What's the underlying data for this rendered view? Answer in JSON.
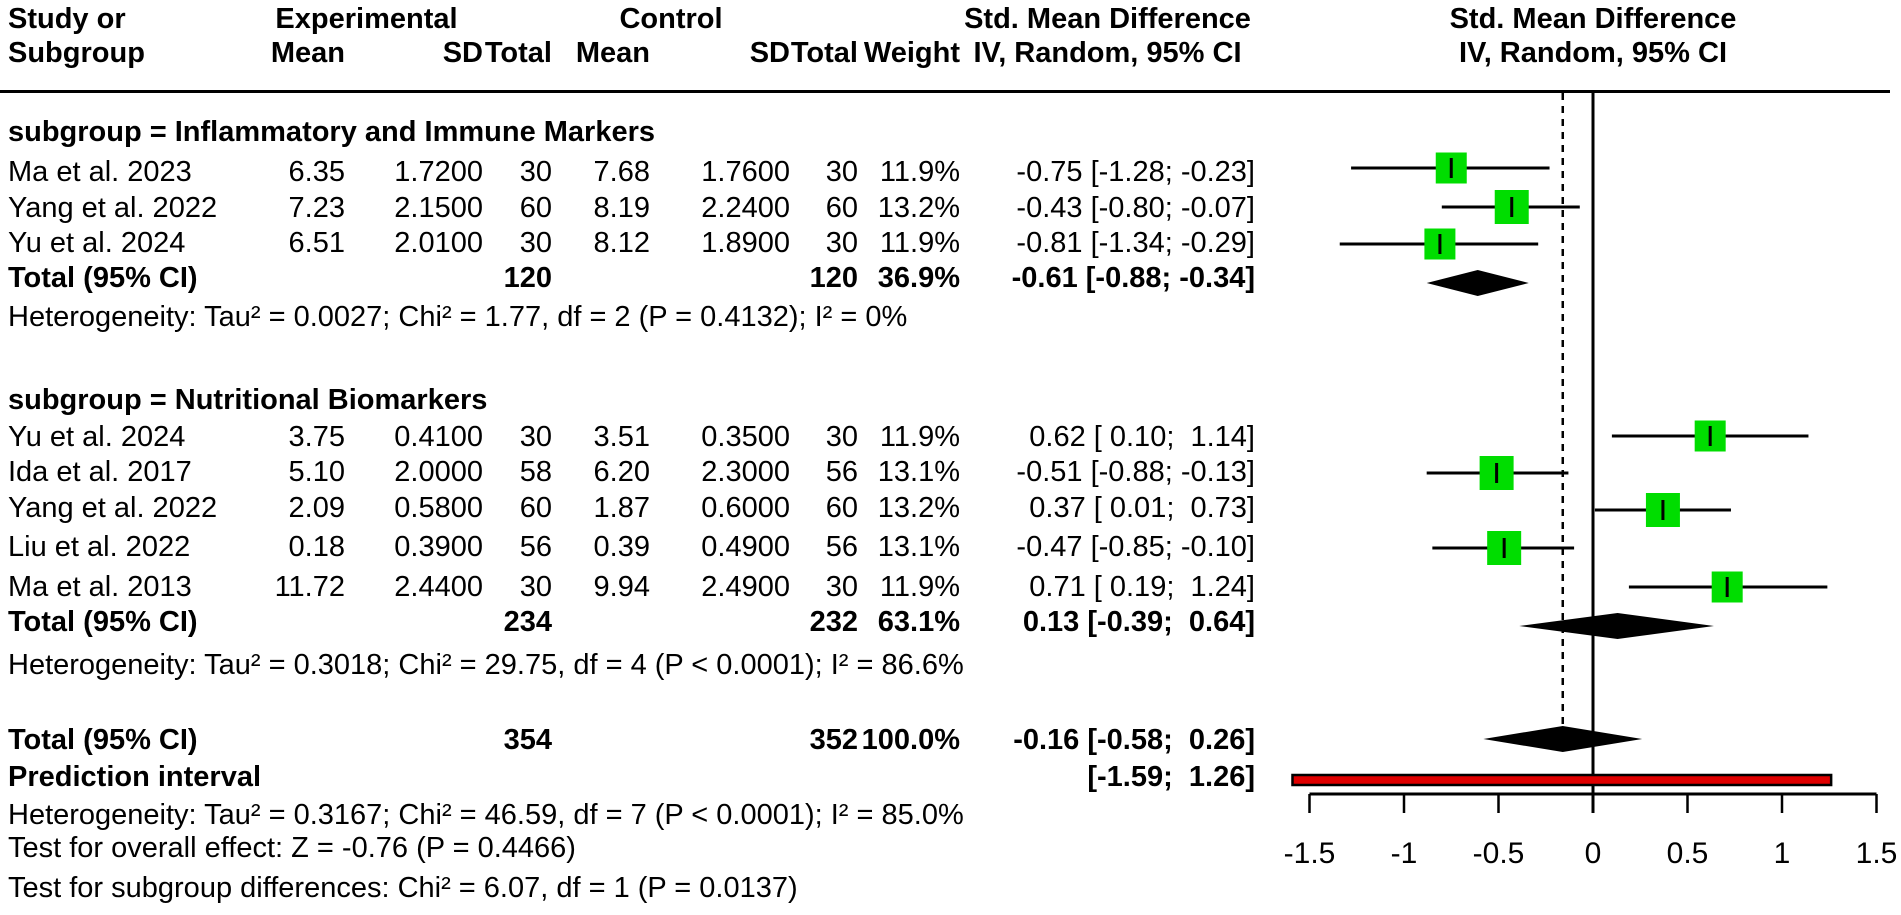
{
  "header": {
    "study_line1": "Study or",
    "study_line2": "Subgroup",
    "experimental": "Experimental",
    "control": "Control",
    "mean": "Mean",
    "sd": "SD",
    "total": "Total",
    "weight": "Weight",
    "smd_line1": "Std. Mean Difference",
    "smd_line2": "IV, Random, 95% CI",
    "plot_line1": "Std. Mean Difference",
    "plot_line2": "IV, Random, 95% CI"
  },
  "sections": [
    {
      "title": "subgroup = Inflammatory and Immune Markers",
      "rows": [
        {
          "study": "Ma et al. 2023",
          "exp_mean": "6.35",
          "exp_sd": "1.7200",
          "exp_total": "30",
          "ctrl_mean": "7.68",
          "ctrl_sd": "1.7600",
          "ctrl_total": "30",
          "weight": "11.9%",
          "smd": "-0.75 [-1.28; -0.23]"
        },
        {
          "study": "Yang et al. 2022",
          "exp_mean": "7.23",
          "exp_sd": "2.1500",
          "exp_total": "60",
          "ctrl_mean": "8.19",
          "ctrl_sd": "2.2400",
          "ctrl_total": "60",
          "weight": "13.2%",
          "smd": "-0.43 [-0.80; -0.07]"
        },
        {
          "study": "Yu et al. 2024",
          "exp_mean": "6.51",
          "exp_sd": "2.0100",
          "exp_total": "30",
          "ctrl_mean": "8.12",
          "ctrl_sd": "1.8900",
          "ctrl_total": "30",
          "weight": "11.9%",
          "smd": "-0.81 [-1.34; -0.29]"
        }
      ],
      "total": {
        "label": "Total (95% CI)",
        "exp_total": "120",
        "ctrl_total": "120",
        "weight": "36.9%",
        "smd": "-0.61 [-0.88; -0.34]"
      },
      "heterogeneity": "Heterogeneity: Tau² = 0.0027; Chi² = 1.77, df = 2 (P = 0.4132); I² = 0%"
    },
    {
      "title": "subgroup = Nutritional Biomarkers",
      "rows": [
        {
          "study": "Yu et al. 2024",
          "exp_mean": "3.75",
          "exp_sd": "0.4100",
          "exp_total": "30",
          "ctrl_mean": "3.51",
          "ctrl_sd": "0.3500",
          "ctrl_total": "30",
          "weight": "11.9%",
          "smd": " 0.62 [ 0.10;  1.14]"
        },
        {
          "study": "Ida et al. 2017",
          "exp_mean": "5.10",
          "exp_sd": "2.0000",
          "exp_total": "58",
          "ctrl_mean": "6.20",
          "ctrl_sd": "2.3000",
          "ctrl_total": "56",
          "weight": "13.1%",
          "smd": "-0.51 [-0.88; -0.13]"
        },
        {
          "study": "Yang et al. 2022",
          "exp_mean": "2.09",
          "exp_sd": "0.5800",
          "exp_total": "60",
          "ctrl_mean": "1.87",
          "ctrl_sd": "0.6000",
          "ctrl_total": "60",
          "weight": "13.2%",
          "smd": " 0.37 [ 0.01;  0.73]"
        },
        {
          "study": "Liu et al. 2022",
          "exp_mean": "0.18",
          "exp_sd": "0.3900",
          "exp_total": "56",
          "ctrl_mean": "0.39",
          "ctrl_sd": "0.4900",
          "ctrl_total": "56",
          "weight": "13.1%",
          "smd": "-0.47 [-0.85; -0.10]"
        },
        {
          "study": "Ma et al. 2013",
          "exp_mean": "11.72",
          "exp_sd": "2.4400",
          "exp_total": "30",
          "ctrl_mean": "9.94",
          "ctrl_sd": "2.4900",
          "ctrl_total": "30",
          "weight": "11.9%",
          "smd": " 0.71 [ 0.19;  1.24]"
        }
      ],
      "total": {
        "label": "Total (95% CI)",
        "exp_total": "234",
        "ctrl_total": "232",
        "weight": "63.1%",
        "smd": " 0.13 [-0.39;  0.64]"
      },
      "heterogeneity": "Heterogeneity: Tau² = 0.3018; Chi² = 29.75, df = 4 (P < 0.0001); I² = 86.6%"
    }
  ],
  "overall": {
    "total": {
      "label": "Total (95% CI)",
      "exp_total": "354",
      "ctrl_total": "352",
      "weight": "100.0%",
      "smd": "-0.16 [-0.58;  0.26]"
    },
    "prediction": {
      "label": "Prediction interval",
      "smd": "[-1.59;  1.26]"
    },
    "heterogeneity": "Heterogeneity: Tau² = 0.3167; Chi² = 46.59, df = 7 (P < 0.0001); I² = 85.0%",
    "overall_effect": "Test for overall effect: Z = -0.76 (P = 0.4466)",
    "subgroup_diff": "Test for subgroup differences: Chi² = 6.07, df = 1 (P = 0.0137)"
  },
  "chart_data": {
    "type": "forest",
    "effect_measure": "Std. Mean Difference (IV, Random, 95% CI)",
    "xlim": [
      -1.5,
      1.5
    ],
    "x_ticks": [
      -1.5,
      -1,
      -0.5,
      0,
      0.5,
      1,
      1.5
    ],
    "x_tick_labels": [
      "-1.5",
      "-1",
      "-0.5",
      "0",
      "0.5",
      "1",
      "1.5"
    ],
    "zero_line": 0,
    "overall_dashed_line": -0.16,
    "colors": {
      "square": "#00dd00",
      "diamond": "#000000",
      "prediction": "#e00000",
      "line": "#000000"
    },
    "points": [
      {
        "label": "Ma et al. 2023",
        "subgroup": "Inflammatory and Immune Markers",
        "est": -0.75,
        "lo": -1.28,
        "hi": -0.23,
        "weight_pct": 11.9
      },
      {
        "label": "Yang et al. 2022",
        "subgroup": "Inflammatory and Immune Markers",
        "est": -0.43,
        "lo": -0.8,
        "hi": -0.07,
        "weight_pct": 13.2
      },
      {
        "label": "Yu et al. 2024",
        "subgroup": "Inflammatory and Immune Markers",
        "est": -0.81,
        "lo": -1.34,
        "hi": -0.29,
        "weight_pct": 11.9
      },
      {
        "label": "Yu et al. 2024",
        "subgroup": "Nutritional Biomarkers",
        "est": 0.62,
        "lo": 0.1,
        "hi": 1.14,
        "weight_pct": 11.9
      },
      {
        "label": "Ida et al. 2017",
        "subgroup": "Nutritional Biomarkers",
        "est": -0.51,
        "lo": -0.88,
        "hi": -0.13,
        "weight_pct": 13.1
      },
      {
        "label": "Yang et al. 2022",
        "subgroup": "Nutritional Biomarkers",
        "est": 0.37,
        "lo": 0.01,
        "hi": 0.73,
        "weight_pct": 13.2
      },
      {
        "label": "Liu et al. 2022",
        "subgroup": "Nutritional Biomarkers",
        "est": -0.47,
        "lo": -0.85,
        "hi": -0.1,
        "weight_pct": 13.1
      },
      {
        "label": "Ma et al. 2013",
        "subgroup": "Nutritional Biomarkers",
        "est": 0.71,
        "lo": 0.19,
        "hi": 1.24,
        "weight_pct": 11.9
      }
    ],
    "diamonds": [
      {
        "label": "Subtotal: Inflammatory and Immune Markers",
        "est": -0.61,
        "lo": -0.88,
        "hi": -0.34
      },
      {
        "label": "Subtotal: Nutritional Biomarkers",
        "est": 0.13,
        "lo": -0.39,
        "hi": 0.64
      },
      {
        "label": "Overall Total (95% CI)",
        "est": -0.16,
        "lo": -0.58,
        "hi": 0.26
      }
    ],
    "prediction_interval": {
      "lo": -1.59,
      "hi": 1.26
    }
  }
}
